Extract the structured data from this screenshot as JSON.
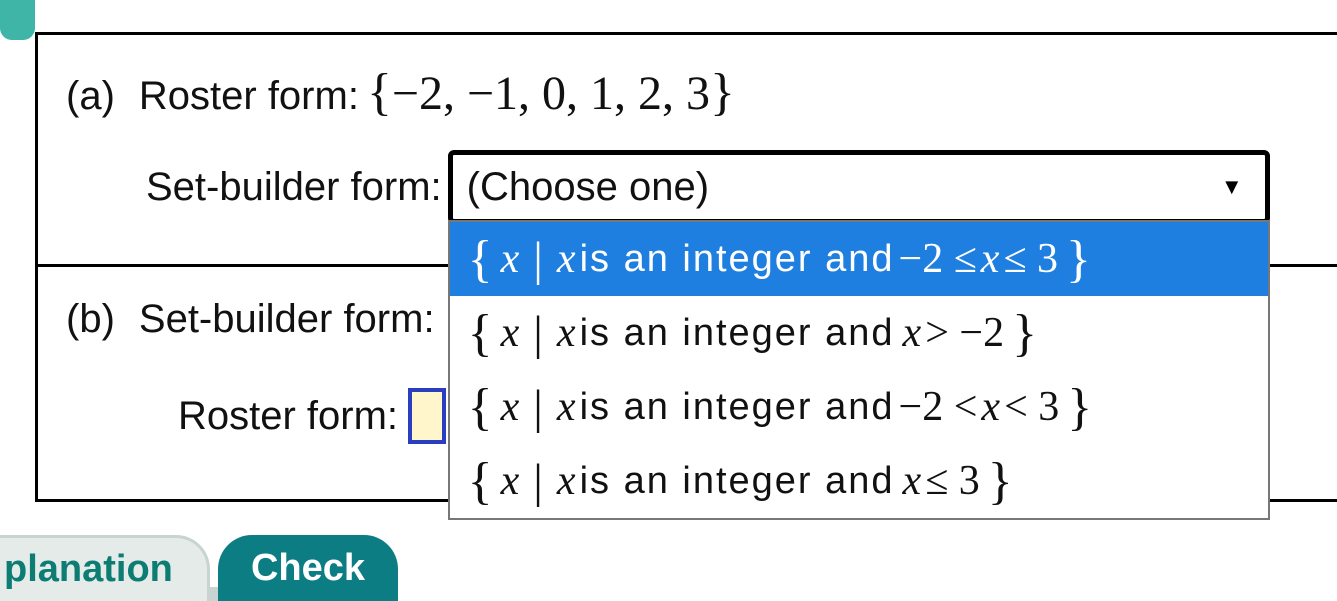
{
  "colors": {
    "accent_teal": "#3fb5a8",
    "check_bg": "#0d7d84",
    "explanation_text": "#0d7d74",
    "explanation_bg": "#e4ebe9",
    "highlight_bg": "#1e7fe0",
    "input_border": "#2a3fbf",
    "input_fill": "#fff6cc",
    "border": "#000000"
  },
  "part_a": {
    "label": "(a)",
    "roster_label": "Roster form:",
    "roster_value_open": "{",
    "roster_value_nums": "−2, −1, 0, 1, 2, 3",
    "roster_value_close": "}",
    "setbuilder_label": "Set-builder form:",
    "dropdown_placeholder": "(Choose one)",
    "options": [
      {
        "lbrace": "{",
        "x1": "x",
        "bar": "|",
        "x2": "x",
        "txt": " is an integer and ",
        "cond_pre": "−2 ≤ ",
        "cond_x": "x",
        "cond_post": " ≤ 3",
        "rbrace": "}",
        "highlighted": true
      },
      {
        "lbrace": "{",
        "x1": "x",
        "bar": "|",
        "x2": "x",
        "txt": " is an integer and ",
        "cond_pre": "",
        "cond_x": "x",
        "cond_post": " > −2",
        "rbrace": "}",
        "highlighted": false
      },
      {
        "lbrace": "{",
        "x1": "x",
        "bar": "|",
        "x2": "x",
        "txt": " is an integer and ",
        "cond_pre": "−2 < ",
        "cond_x": "x",
        "cond_post": " < 3",
        "rbrace": "}",
        "highlighted": false
      },
      {
        "lbrace": "{",
        "x1": "x",
        "bar": "|",
        "x2": "x",
        "txt": " is an integer and ",
        "cond_pre": "",
        "cond_x": "x",
        "cond_post": " ≤ 3",
        "rbrace": "}",
        "highlighted": false
      }
    ]
  },
  "part_b": {
    "label": "(b)",
    "setbuilder_label": "Set-builder form:",
    "roster_label": "Roster form:"
  },
  "buttons": {
    "explanation": "planation",
    "check": "Check"
  },
  "dropdown_triangle": "▼"
}
